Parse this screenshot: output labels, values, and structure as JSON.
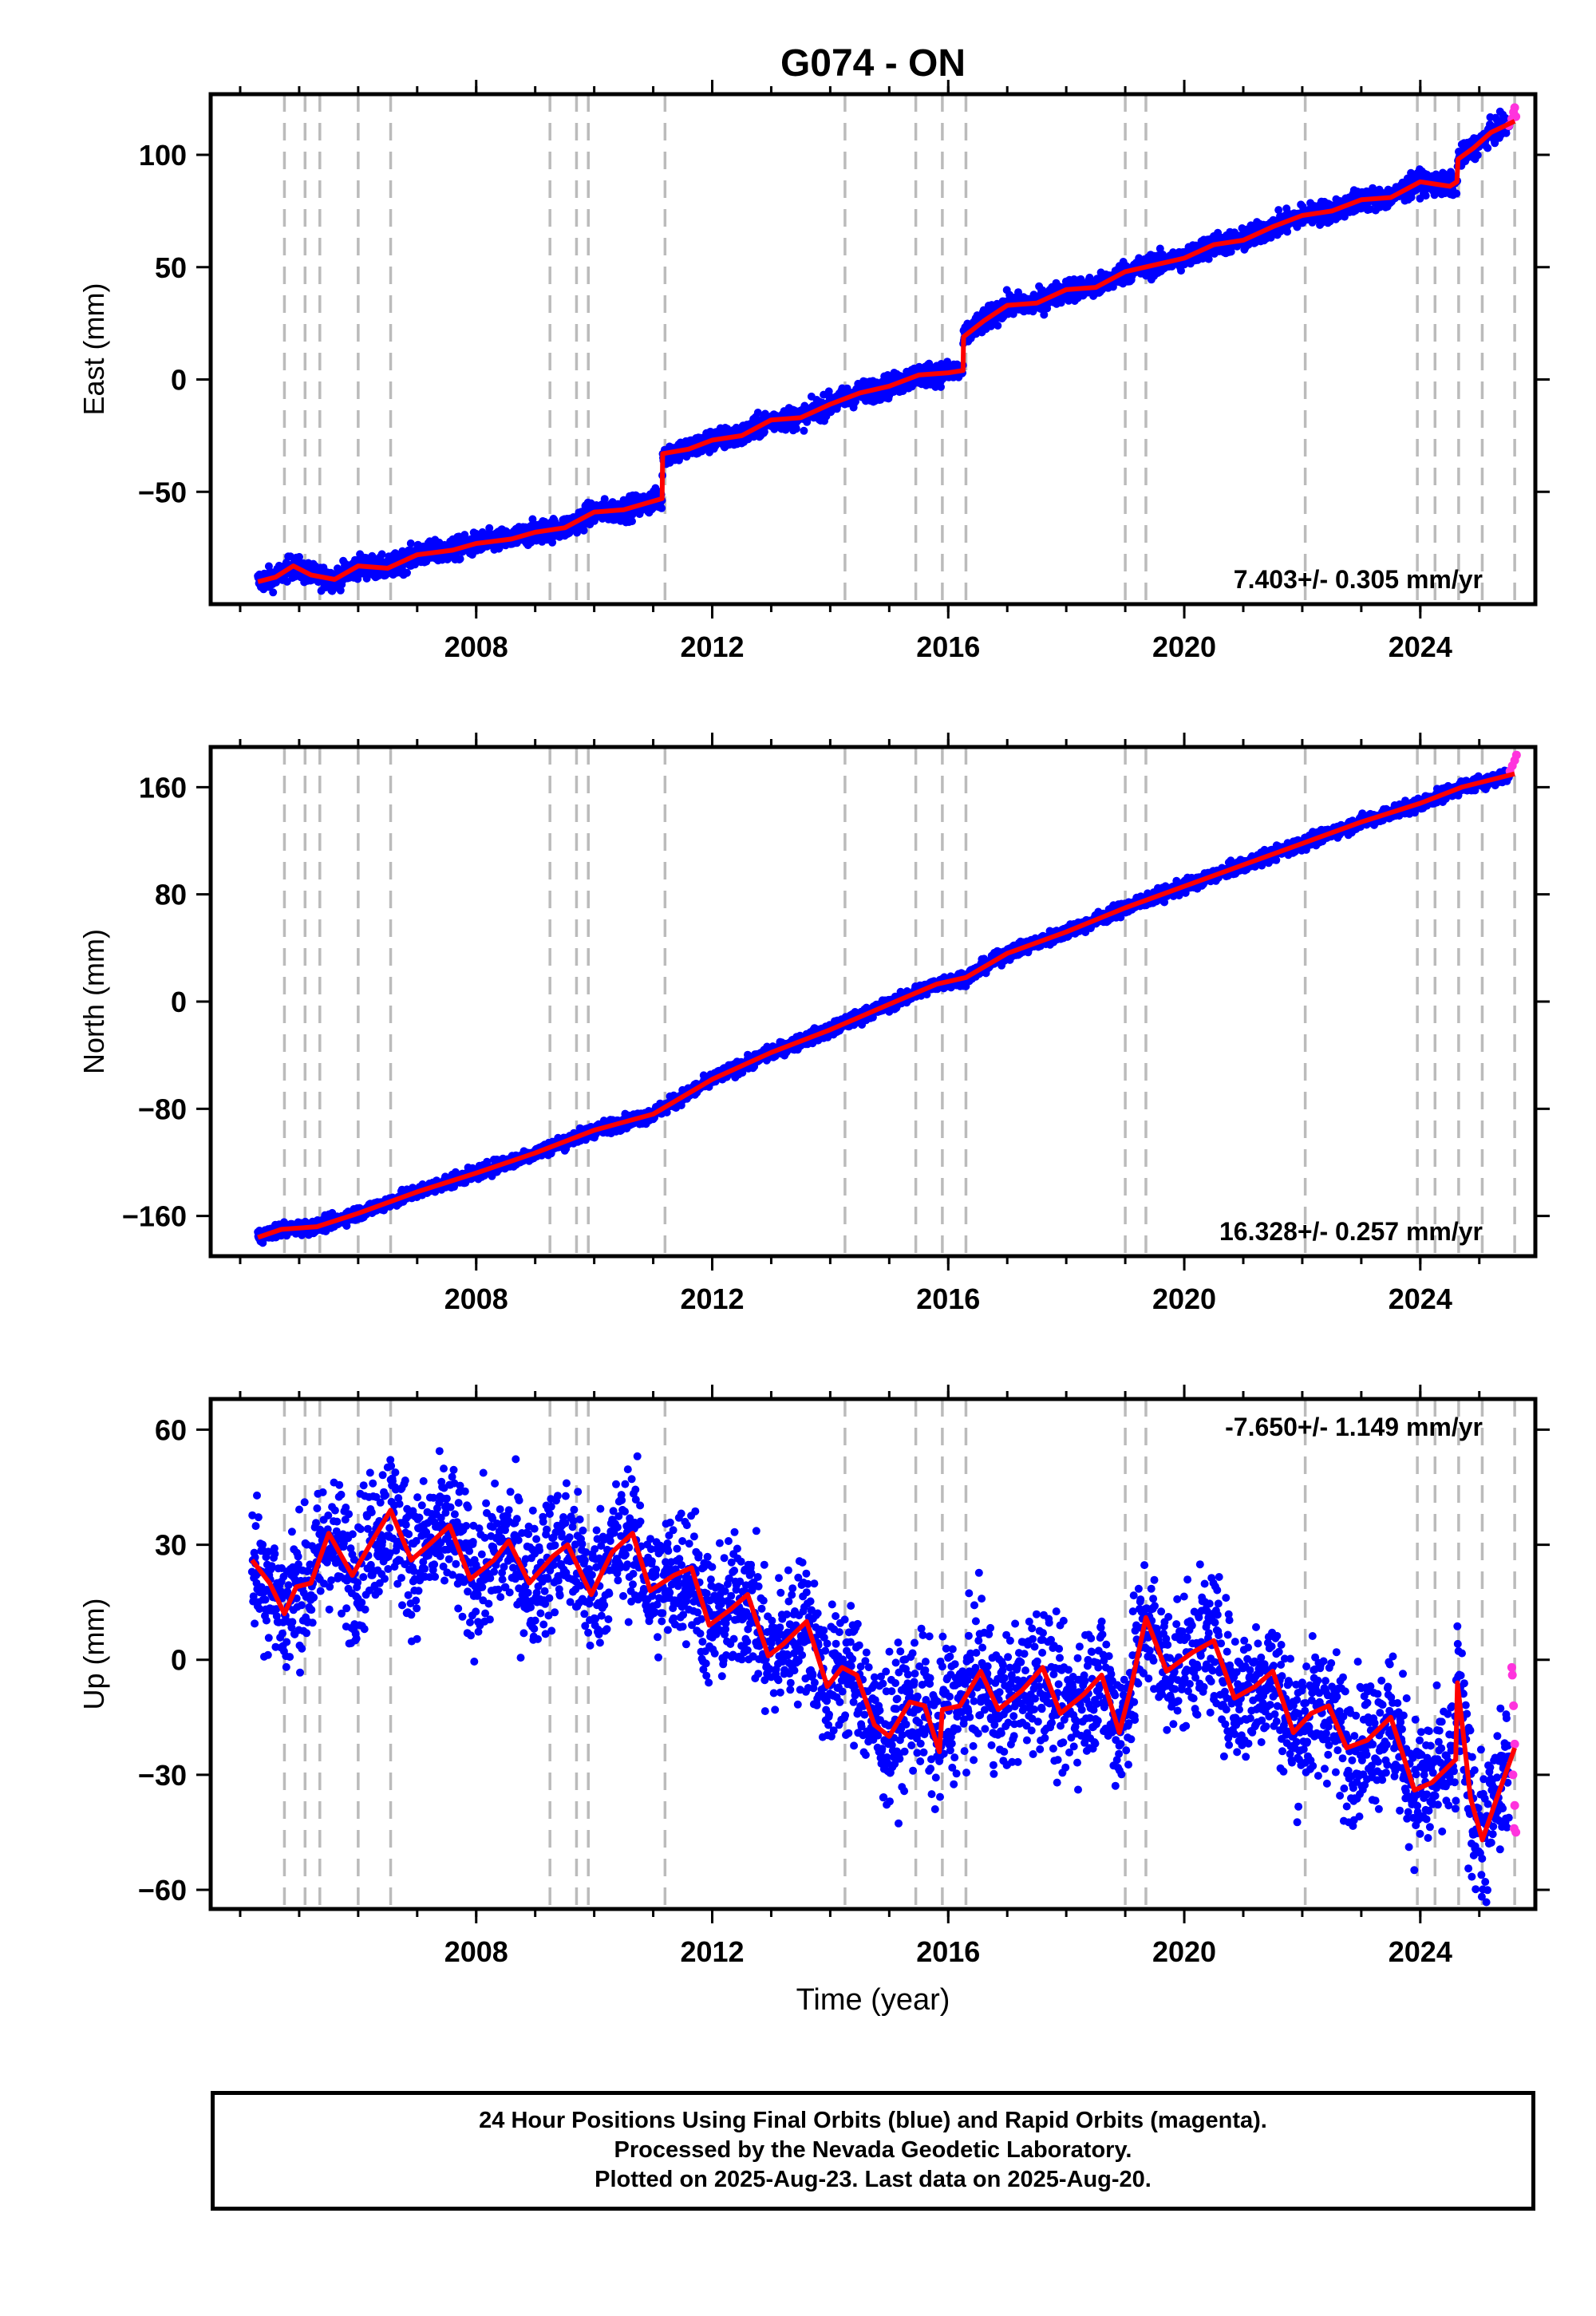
{
  "title": "G074 - ON",
  "xlabel": "Time (year)",
  "footer": {
    "line1": "24 Hour Positions Using Final Orbits (blue) and Rapid Orbits (magenta).",
    "line2": "Processed by the Nevada Geodetic Laboratory.",
    "line3": "Plotted on 2025-Aug-23. Last data on 2025-Aug-20."
  },
  "colors": {
    "final": "#0000ff",
    "rapid": "#ff33dd",
    "model": "#ff0000",
    "event": "#bbbbbb",
    "frame": "#000000"
  },
  "chart_data": [
    {
      "type": "scatter",
      "component": "east",
      "ylabel": "East (mm)",
      "rate": "7.403+/- 0.305 mm/yr",
      "xlim": [
        2003.5,
        2025.95
      ],
      "ylim": [
        -100,
        127
      ],
      "xticks": [
        2008,
        2012,
        2016,
        2020,
        2024
      ],
      "xtick_labels": [
        "2008",
        "2012",
        "2016",
        "2020",
        "2024"
      ],
      "yticks": [
        -50,
        0,
        50,
        100
      ],
      "ytick_labels": [
        "−50",
        "0",
        "50",
        "100"
      ],
      "scatter_spread": 2.5,
      "rapid_points": [
        [
          2025.5,
          113
        ],
        [
          2025.55,
          116
        ],
        [
          2025.58,
          119
        ],
        [
          2025.6,
          121
        ],
        [
          2025.62,
          117
        ]
      ],
      "model": [
        [
          2004.3,
          -90
        ],
        [
          2004.6,
          -88
        ],
        [
          2004.9,
          -83
        ],
        [
          2005.2,
          -87
        ],
        [
          2005.6,
          -89
        ],
        [
          2006.0,
          -83
        ],
        [
          2006.5,
          -84
        ],
        [
          2007.0,
          -78
        ],
        [
          2007.6,
          -76
        ],
        [
          2008.0,
          -73
        ],
        [
          2008.6,
          -71
        ],
        [
          2009.0,
          -68
        ],
        [
          2009.5,
          -66
        ],
        [
          2010.0,
          -59
        ],
        [
          2010.5,
          -58
        ],
        [
          2011.15,
          -53
        ],
        [
          2011.16,
          -33
        ],
        [
          2011.6,
          -31
        ],
        [
          2012.0,
          -27
        ],
        [
          2012.5,
          -25
        ],
        [
          2013.0,
          -18
        ],
        [
          2013.5,
          -17
        ],
        [
          2014.0,
          -11
        ],
        [
          2014.5,
          -6
        ],
        [
          2015.0,
          -3
        ],
        [
          2015.5,
          2
        ],
        [
          2016.0,
          3
        ],
        [
          2016.25,
          4
        ],
        [
          2016.26,
          19
        ],
        [
          2016.6,
          26
        ],
        [
          2017.0,
          33
        ],
        [
          2017.5,
          34
        ],
        [
          2018.0,
          40
        ],
        [
          2018.5,
          41
        ],
        [
          2019.0,
          48
        ],
        [
          2019.5,
          51
        ],
        [
          2020.0,
          54
        ],
        [
          2020.5,
          60
        ],
        [
          2021.0,
          62
        ],
        [
          2021.5,
          68
        ],
        [
          2022.0,
          73
        ],
        [
          2022.5,
          75
        ],
        [
          2023.0,
          80
        ],
        [
          2023.5,
          81
        ],
        [
          2024.0,
          88
        ],
        [
          2024.5,
          86
        ],
        [
          2024.62,
          88
        ],
        [
          2024.64,
          98
        ],
        [
          2024.9,
          103
        ],
        [
          2025.2,
          110
        ],
        [
          2025.6,
          115
        ]
      ]
    },
    {
      "type": "scatter",
      "component": "north",
      "ylabel": "North (mm)",
      "rate": "16.328+/- 0.257 mm/yr",
      "xlim": [
        2003.5,
        2025.95
      ],
      "ylim": [
        -190,
        190
      ],
      "xticks": [
        2008,
        2012,
        2016,
        2020,
        2024
      ],
      "xtick_labels": [
        "2008",
        "2012",
        "2016",
        "2020",
        "2024"
      ],
      "yticks": [
        -160,
        -80,
        0,
        80,
        160
      ],
      "ytick_labels": [
        "−160",
        "−80",
        "0",
        "80",
        "160"
      ],
      "scatter_spread": 2.5,
      "rapid_points": [
        [
          2025.52,
          172
        ],
        [
          2025.56,
          176
        ],
        [
          2025.6,
          180
        ],
        [
          2025.63,
          184
        ]
      ],
      "model": [
        [
          2004.3,
          -176
        ],
        [
          2004.7,
          -170
        ],
        [
          2005.3,
          -168
        ],
        [
          2006.0,
          -158
        ],
        [
          2007.0,
          -142
        ],
        [
          2008.0,
          -128
        ],
        [
          2009.0,
          -113
        ],
        [
          2010.0,
          -96
        ],
        [
          2011.0,
          -84
        ],
        [
          2012.0,
          -58
        ],
        [
          2013.0,
          -38
        ],
        [
          2014.0,
          -21
        ],
        [
          2015.0,
          -2
        ],
        [
          2015.8,
          13
        ],
        [
          2016.3,
          18
        ],
        [
          2017.0,
          36
        ],
        [
          2018.0,
          52
        ],
        [
          2019.0,
          70
        ],
        [
          2020.0,
          86
        ],
        [
          2021.0,
          102
        ],
        [
          2022.0,
          118
        ],
        [
          2023.0,
          134
        ],
        [
          2024.0,
          148
        ],
        [
          2024.7,
          160
        ],
        [
          2025.6,
          170
        ]
      ]
    },
    {
      "type": "scatter",
      "component": "up",
      "ylabel": "Up (mm)",
      "rate": "-7.650+/- 1.149 mm/yr",
      "xlim": [
        2003.5,
        2025.95
      ],
      "ylim": [
        -65,
        68
      ],
      "xticks": [
        2008,
        2012,
        2016,
        2020,
        2024
      ],
      "xtick_labels": [
        "2008",
        "2012",
        "2016",
        "2020",
        "2024"
      ],
      "yticks": [
        -60,
        -30,
        0,
        30,
        60
      ],
      "ytick_labels": [
        "−60",
        "−30",
        "0",
        "30",
        "60"
      ],
      "scatter_spread": 9,
      "rapid_points": [
        [
          2025.55,
          -2
        ],
        [
          2025.56,
          -4
        ],
        [
          2025.58,
          -12
        ],
        [
          2025.6,
          -22
        ],
        [
          2025.57,
          -30
        ],
        [
          2025.6,
          -38
        ],
        [
          2025.59,
          -44
        ],
        [
          2025.62,
          -45
        ]
      ],
      "model": [
        [
          2004.2,
          26
        ],
        [
          2004.5,
          20
        ],
        [
          2004.75,
          12
        ],
        [
          2004.95,
          19
        ],
        [
          2005.2,
          20
        ],
        [
          2005.5,
          33
        ],
        [
          2005.9,
          22
        ],
        [
          2006.2,
          30
        ],
        [
          2006.55,
          39
        ],
        [
          2006.9,
          26
        ],
        [
          2007.2,
          30
        ],
        [
          2007.55,
          35
        ],
        [
          2007.9,
          21
        ],
        [
          2008.3,
          26
        ],
        [
          2008.55,
          31
        ],
        [
          2008.9,
          20
        ],
        [
          2009.3,
          27
        ],
        [
          2009.55,
          30
        ],
        [
          2009.95,
          17
        ],
        [
          2010.3,
          28
        ],
        [
          2010.65,
          33
        ],
        [
          2010.95,
          18
        ],
        [
          2011.35,
          22
        ],
        [
          2011.65,
          24
        ],
        [
          2011.95,
          9
        ],
        [
          2012.3,
          13
        ],
        [
          2012.6,
          17
        ],
        [
          2012.95,
          1
        ],
        [
          2013.2,
          4
        ],
        [
          2013.6,
          10
        ],
        [
          2013.95,
          -7
        ],
        [
          2014.2,
          -2
        ],
        [
          2014.45,
          -4
        ],
        [
          2014.75,
          -17
        ],
        [
          2015.0,
          -20
        ],
        [
          2015.35,
          -11
        ],
        [
          2015.6,
          -12
        ],
        [
          2015.85,
          -24
        ],
        [
          2015.9,
          -13
        ],
        [
          2016.2,
          -12
        ],
        [
          2016.55,
          -3
        ],
        [
          2016.85,
          -13
        ],
        [
          2017.25,
          -8
        ],
        [
          2017.6,
          -2
        ],
        [
          2017.9,
          -14
        ],
        [
          2018.3,
          -9
        ],
        [
          2018.6,
          -4
        ],
        [
          2018.9,
          -19
        ],
        [
          2019.1,
          -7
        ],
        [
          2019.35,
          11
        ],
        [
          2019.7,
          -3
        ],
        [
          2020.15,
          2
        ],
        [
          2020.5,
          5
        ],
        [
          2020.85,
          -10
        ],
        [
          2021.2,
          -7
        ],
        [
          2021.5,
          -3
        ],
        [
          2021.85,
          -19
        ],
        [
          2022.15,
          -14
        ],
        [
          2022.45,
          -12
        ],
        [
          2022.75,
          -23
        ],
        [
          2023.1,
          -21
        ],
        [
          2023.5,
          -15
        ],
        [
          2023.9,
          -34
        ],
        [
          2024.2,
          -32
        ],
        [
          2024.6,
          -26
        ],
        [
          2024.63,
          -6
        ],
        [
          2024.85,
          -36
        ],
        [
          2025.05,
          -47
        ],
        [
          2025.3,
          -36
        ],
        [
          2025.6,
          -23
        ]
      ]
    }
  ],
  "event_lines": [
    2004.75,
    2005.1,
    2005.35,
    2006.0,
    2006.55,
    2009.25,
    2009.7,
    2009.9,
    2011.2,
    2014.25,
    2015.45,
    2015.9,
    2016.3,
    2019.0,
    2019.35,
    2022.05,
    2023.95,
    2024.25,
    2024.65,
    2025.05,
    2025.6
  ]
}
